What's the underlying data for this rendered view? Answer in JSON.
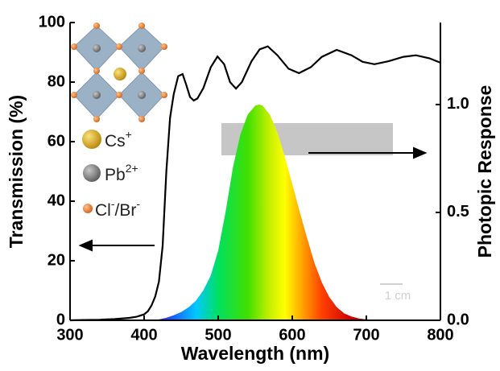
{
  "chart_data": {
    "type": "line",
    "xlabel": "Wavelength (nm)",
    "ylabel": "Transmission (%)",
    "y2label": "Photopic Response",
    "xlim": [
      300,
      800
    ],
    "xticks": [
      300,
      400,
      500,
      600,
      700,
      800
    ],
    "ylim": [
      0,
      100
    ],
    "yticks": [
      0,
      20,
      40,
      60,
      80,
      100
    ],
    "y2lim": [
      0,
      1.38
    ],
    "y2ticks": [
      {
        "value": 0,
        "label": "0.0"
      },
      {
        "value": 0.5,
        "label": "0.5"
      },
      {
        "value": 1,
        "label": "1.0"
      }
    ],
    "series": [
      {
        "color": "#000000",
        "x": [
          300,
          320,
          340,
          360,
          380,
          390,
          400,
          405,
          410,
          415,
          420,
          425,
          430,
          435,
          440,
          446,
          452,
          457,
          462,
          467,
          472,
          480,
          490,
          499,
          508,
          516,
          524,
          532,
          545,
          556,
          567,
          580,
          595,
          609,
          625,
          640,
          660,
          680,
          695,
          711,
          730,
          750,
          767,
          785,
          800
        ],
        "values": [
          0,
          0.1,
          0.2,
          0.4,
          0.8,
          1.2,
          2,
          3,
          5,
          8,
          13,
          25,
          50,
          68,
          76,
          82,
          82.7,
          79,
          75,
          73.8,
          74.5,
          78,
          85,
          88.6,
          86,
          80,
          77.8,
          80,
          87,
          91,
          92,
          89,
          84.5,
          83,
          85,
          88.5,
          90.8,
          89,
          86.8,
          86,
          87,
          88.5,
          89,
          88,
          86.5
        ]
      },
      {
        "axis": "y2",
        "color": "rainbow",
        "x": [
          380,
          390,
          400,
          410,
          420,
          430,
          440,
          450,
          460,
          470,
          480,
          490,
          500,
          510,
          520,
          530,
          540,
          550,
          555,
          560,
          570,
          580,
          590,
          600,
          610,
          620,
          630,
          640,
          650,
          660,
          670,
          680,
          690,
          700,
          710,
          720,
          730,
          740,
          750
        ],
        "values": [
          0,
          0.0001,
          0.0004,
          0.0012,
          0.004,
          0.0116,
          0.023,
          0.038,
          0.06,
          0.091,
          0.139,
          0.208,
          0.323,
          0.503,
          0.71,
          0.862,
          0.954,
          0.995,
          1,
          0.995,
          0.952,
          0.87,
          0.757,
          0.631,
          0.503,
          0.381,
          0.265,
          0.175,
          0.107,
          0.061,
          0.032,
          0.017,
          0.0082,
          0.0041,
          0.0021,
          0.001,
          0.0005,
          0.00025,
          0.00012
        ]
      }
    ],
    "ions": [
      [
        "Cs",
        "+"
      ],
      [
        "Pb",
        "2+"
      ],
      [
        "Cl",
        "-",
        "/Br",
        "-"
      ]
    ],
    "scale_bar": "1 cm"
  }
}
